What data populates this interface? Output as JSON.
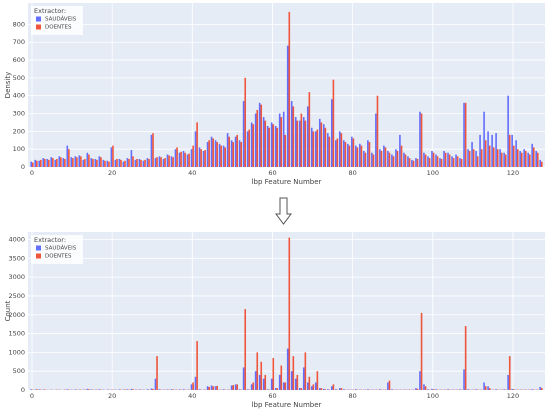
{
  "chart_data": [
    {
      "type": "bar",
      "legend_title": "Extractor:",
      "xlabel": "lbp Feature Number",
      "ylabel": "Density",
      "x": [
        0,
        1,
        2,
        3,
        4,
        5,
        6,
        7,
        8,
        9,
        10,
        11,
        12,
        13,
        14,
        15,
        16,
        17,
        18,
        19,
        20,
        21,
        22,
        23,
        24,
        25,
        26,
        27,
        28,
        29,
        30,
        31,
        32,
        33,
        34,
        35,
        36,
        37,
        38,
        39,
        40,
        41,
        42,
        43,
        44,
        45,
        46,
        47,
        48,
        49,
        50,
        51,
        52,
        53,
        54,
        55,
        56,
        57,
        58,
        59,
        60,
        61,
        62,
        63,
        64,
        65,
        66,
        67,
        68,
        69,
        70,
        71,
        72,
        73,
        74,
        75,
        76,
        77,
        78,
        79,
        80,
        81,
        82,
        83,
        84,
        85,
        86,
        87,
        88,
        89,
        90,
        91,
        92,
        93,
        94,
        95,
        96,
        97,
        98,
        99,
        100,
        101,
        102,
        103,
        104,
        105,
        106,
        107,
        108,
        109,
        110,
        111,
        112,
        113,
        114,
        115,
        116,
        117,
        118,
        119,
        120,
        121,
        122,
        123,
        124,
        125,
        126,
        127
      ],
      "series": [
        {
          "name": "SAUDÁVEIS",
          "color": "#636efa",
          "values": [
            30,
            40,
            35,
            50,
            45,
            55,
            40,
            60,
            50,
            120,
            55,
            60,
            65,
            40,
            80,
            50,
            45,
            60,
            40,
            35,
            110,
            40,
            45,
            30,
            50,
            95,
            40,
            45,
            35,
            50,
            180,
            50,
            60,
            45,
            70,
            60,
            100,
            80,
            90,
            70,
            100,
            200,
            110,
            90,
            140,
            170,
            150,
            130,
            120,
            190,
            150,
            170,
            150,
            370,
            200,
            250,
            300,
            360,
            280,
            230,
            250,
            230,
            300,
            310,
            680,
            370,
            280,
            260,
            280,
            340,
            220,
            200,
            270,
            240,
            190,
            380,
            150,
            200,
            150,
            130,
            170,
            120,
            130,
            90,
            150,
            80,
            300,
            100,
            120,
            90,
            70,
            100,
            180,
            80,
            60,
            40,
            50,
            310,
            80,
            60,
            90,
            70,
            50,
            90,
            80,
            60,
            70,
            50,
            360,
            100,
            140,
            90,
            180,
            310,
            200,
            180,
            190,
            100,
            80,
            400,
            180,
            150,
            90,
            100,
            80,
            130,
            90,
            40
          ]
        },
        {
          "name": "DOENTES",
          "color": "#ef553b",
          "values": [
            25,
            35,
            40,
            45,
            40,
            50,
            45,
            55,
            45,
            100,
            50,
            55,
            60,
            45,
            70,
            45,
            40,
            55,
            35,
            30,
            120,
            45,
            40,
            35,
            45,
            60,
            45,
            40,
            40,
            45,
            190,
            55,
            55,
            50,
            65,
            55,
            110,
            85,
            80,
            75,
            120,
            250,
            100,
            95,
            150,
            160,
            140,
            120,
            110,
            170,
            140,
            180,
            140,
            500,
            210,
            240,
            320,
            350,
            260,
            220,
            240,
            220,
            280,
            180,
            870,
            340,
            260,
            300,
            260,
            420,
            200,
            210,
            250,
            220,
            170,
            490,
            160,
            190,
            140,
            120,
            160,
            110,
            120,
            80,
            140,
            70,
            400,
            90,
            110,
            80,
            60,
            90,
            120,
            70,
            50,
            35,
            45,
            300,
            70,
            50,
            80,
            60,
            45,
            80,
            70,
            50,
            60,
            45,
            360,
            90,
            100,
            60,
            100,
            150,
            120,
            110,
            100,
            80,
            70,
            180,
            120,
            100,
            80,
            90,
            70,
            110,
            80,
            30
          ]
        }
      ],
      "xlim": [
        -1,
        128
      ],
      "xticks": [
        0,
        20,
        40,
        60,
        80,
        100,
        120
      ],
      "ylim": [
        0,
        920
      ],
      "yticks": [
        0,
        100,
        200,
        300,
        400,
        500,
        600,
        700,
        800
      ],
      "grid": true,
      "legend": "top-left"
    },
    {
      "type": "bar",
      "legend_title": "Extractor:",
      "xlabel": "lbp Feature Number",
      "ylabel": "Count",
      "x": [
        0,
        1,
        2,
        3,
        4,
        5,
        6,
        7,
        8,
        9,
        10,
        11,
        12,
        13,
        14,
        15,
        16,
        17,
        18,
        19,
        20,
        21,
        22,
        23,
        24,
        25,
        26,
        27,
        28,
        29,
        30,
        31,
        32,
        33,
        34,
        35,
        36,
        37,
        38,
        39,
        40,
        41,
        42,
        43,
        44,
        45,
        46,
        47,
        48,
        49,
        50,
        51,
        52,
        53,
        54,
        55,
        56,
        57,
        58,
        59,
        60,
        61,
        62,
        63,
        64,
        65,
        66,
        67,
        68,
        69,
        70,
        71,
        72,
        73,
        74,
        75,
        76,
        77,
        78,
        79,
        80,
        81,
        82,
        83,
        84,
        85,
        86,
        87,
        88,
        89,
        90,
        91,
        92,
        93,
        94,
        95,
        96,
        97,
        98,
        99,
        100,
        101,
        102,
        103,
        104,
        105,
        106,
        107,
        108,
        109,
        110,
        111,
        112,
        113,
        114,
        115,
        116,
        117,
        118,
        119,
        120,
        121,
        122,
        123,
        124,
        125,
        126,
        127
      ],
      "series": [
        {
          "name": "SAUDÁVEIS",
          "color": "#636efa",
          "values": [
            20,
            10,
            15,
            10,
            5,
            10,
            5,
            10,
            5,
            20,
            10,
            15,
            10,
            10,
            30,
            15,
            10,
            20,
            10,
            10,
            10,
            10,
            15,
            10,
            20,
            30,
            10,
            15,
            10,
            20,
            40,
            300,
            20,
            10,
            15,
            20,
            10,
            15,
            20,
            10,
            150,
            350,
            20,
            10,
            100,
            120,
            100,
            10,
            20,
            10,
            120,
            150,
            20,
            600,
            20,
            150,
            500,
            400,
            300,
            20,
            300,
            50,
            400,
            200,
            1100,
            500,
            300,
            50,
            600,
            200,
            100,
            200,
            50,
            30,
            20,
            100,
            20,
            50,
            20,
            10,
            10,
            20,
            10,
            10,
            20,
            10,
            10,
            20,
            10,
            200,
            20,
            10,
            10,
            10,
            10,
            10,
            50,
            500,
            150,
            20,
            30,
            20,
            10,
            10,
            20,
            10,
            10,
            20,
            550,
            20,
            10,
            20,
            10,
            200,
            100,
            10,
            20,
            10,
            20,
            400,
            30,
            10,
            10,
            10,
            10,
            20,
            10,
            80
          ]
        },
        {
          "name": "DOENTES",
          "color": "#ef553b",
          "values": [
            10,
            20,
            10,
            15,
            5,
            5,
            10,
            5,
            10,
            10,
            5,
            10,
            10,
            10,
            20,
            10,
            10,
            10,
            5,
            10,
            10,
            5,
            10,
            15,
            10,
            20,
            10,
            10,
            5,
            10,
            30,
            900,
            10,
            10,
            10,
            15,
            10,
            10,
            10,
            10,
            200,
            1300,
            10,
            10,
            80,
            100,
            110,
            10,
            10,
            10,
            130,
            150,
            10,
            2150,
            10,
            200,
            1000,
            750,
            400,
            10,
            850,
            50,
            650,
            200,
            4050,
            900,
            400,
            50,
            1000,
            350,
            150,
            500,
            50,
            20,
            10,
            150,
            10,
            50,
            10,
            10,
            10,
            10,
            10,
            10,
            10,
            10,
            10,
            10,
            10,
            250,
            10,
            10,
            10,
            10,
            10,
            10,
            30,
            2050,
            100,
            10,
            20,
            10,
            10,
            10,
            10,
            10,
            10,
            10,
            1700,
            10,
            10,
            10,
            10,
            100,
            50,
            10,
            10,
            10,
            10,
            900,
            20,
            10,
            10,
            10,
            10,
            10,
            10,
            50
          ]
        }
      ],
      "xlim": [
        -1,
        128
      ],
      "xticks": [
        0,
        20,
        40,
        60,
        80,
        100,
        120
      ],
      "ylim": [
        0,
        4200
      ],
      "yticks": [
        0,
        500,
        1000,
        1500,
        2000,
        2500,
        3000,
        3500,
        4000
      ],
      "grid": true,
      "legend": "top-left"
    }
  ]
}
